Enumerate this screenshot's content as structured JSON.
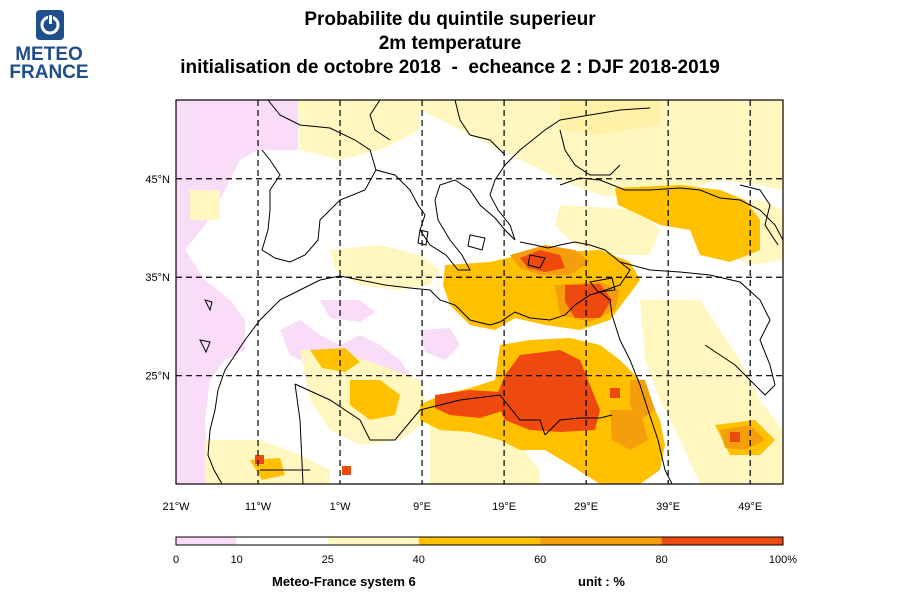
{
  "logo": {
    "name": "meteo-france-logo",
    "line1": "METEO",
    "line2": "FRANCE"
  },
  "title": {
    "line1": "Probabilite du quintile superieur",
    "line2": "2m temperature",
    "line3": "initialisation de octobre 2018  -  echeance 2 : DJF 2018-2019"
  },
  "map": {
    "lat_labels": [
      "45°N",
      "35°N",
      "25°N"
    ],
    "lon_labels": [
      "21°W",
      "11°W",
      "1°W",
      "9°E",
      "19°E",
      "29°E",
      "39°E",
      "49°E"
    ],
    "lon_range": [
      -21,
      53
    ],
    "lat_range": [
      14,
      53
    ]
  },
  "colorbar": {
    "ticks": [
      "0",
      "10",
      "25",
      "40",
      "60",
      "80",
      "100%"
    ],
    "colors": [
      "#f8dcf8",
      "#ffffff",
      "#fff6c0",
      "#ffc000",
      "#f59e0b",
      "#ee4a10"
    ]
  },
  "footer": {
    "model": "Meteo-France system 6",
    "unit": "unit : %"
  }
}
